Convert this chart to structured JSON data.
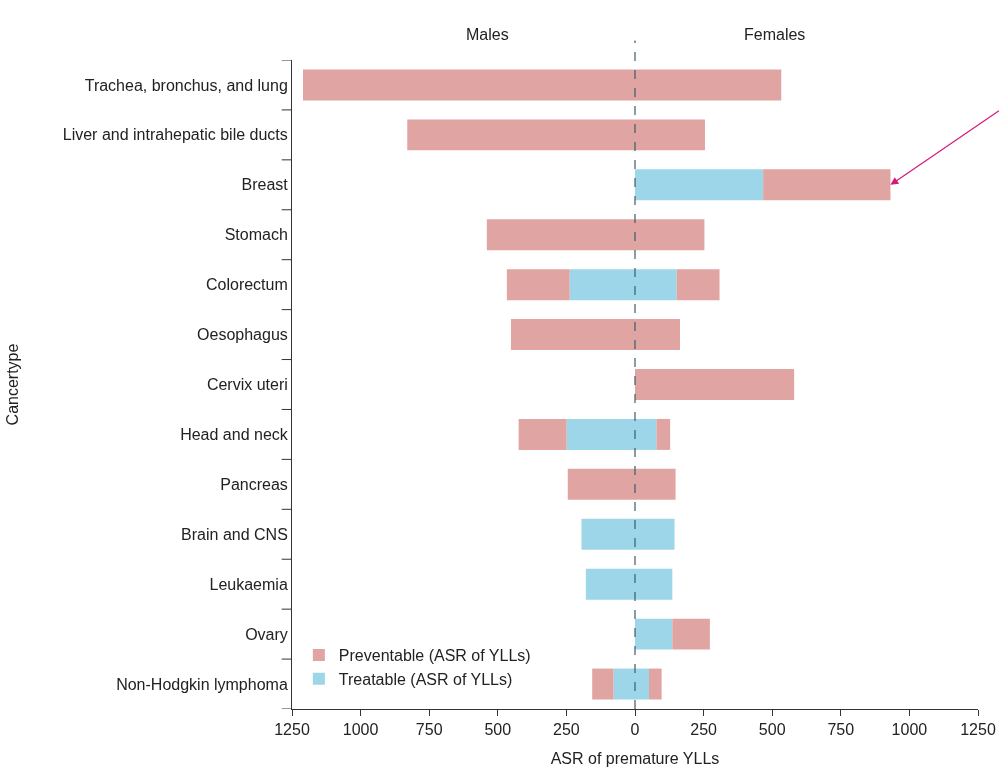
{
  "chart_data": {
    "type": "bar",
    "orientation": "horizontal",
    "stacked": true,
    "xlabel": "ASR of premature YLLs",
    "ylabel": "Cancertype",
    "annotations": [
      "Males",
      "Females"
    ],
    "categories": [
      "Trachea, bronchus, and lung",
      "Liver and intrahepatic bile ducts",
      "Breast",
      "Stomach",
      "Colorectum",
      "Oesophagus",
      "Cervix uteri",
      "Head and neck",
      "Pancreas",
      "Brain and CNS",
      "Leukaemia",
      "Ovary",
      "Non-Hodgkin lymphoma"
    ],
    "series": [
      {
        "name": "Treatable (ASR of YLLs)",
        "color": "#9dd6e8",
        "values": [
          null,
          null,
          null,
          null,
          -238,
          null,
          null,
          -249,
          null,
          -195,
          -179,
          null,
          -78
        ]
      },
      {
        "color": "#9dd6e8",
        "values": [
          null,
          null,
          467,
          null,
          152,
          null,
          null,
          78,
          null,
          144,
          136,
          136,
          51
        ]
      },
      {
        "name": "Preventable (ASR of YLLs)",
        "color": "#e0a5a2",
        "values": [
          -1210,
          -830,
          null,
          -540,
          -229,
          -452,
          null,
          -175,
          -245,
          null,
          null,
          null,
          -78
        ]
      },
      {
        "color": "#e0a5a2",
        "values": [
          533,
          255,
          464,
          253,
          156,
          164,
          580,
          50,
          148,
          null,
          null,
          137,
          46
        ]
      }
    ],
    "xlim": [
      -1250,
      1250
    ],
    "xticks": [
      {
        "value": -1250,
        "label": "1250"
      },
      {
        "value": -1000,
        "label": "1000"
      },
      {
        "value": -750,
        "label": "750"
      },
      {
        "value": -500,
        "label": "500"
      },
      {
        "value": -250,
        "label": "250"
      },
      0,
      250,
      500,
      750,
      1000,
      1250
    ],
    "ref_lines": [
      {
        "axis": "x",
        "value": 0,
        "color": "#3d5a6b",
        "line_style": "dashed"
      }
    ],
    "legend": "bottom left"
  }
}
